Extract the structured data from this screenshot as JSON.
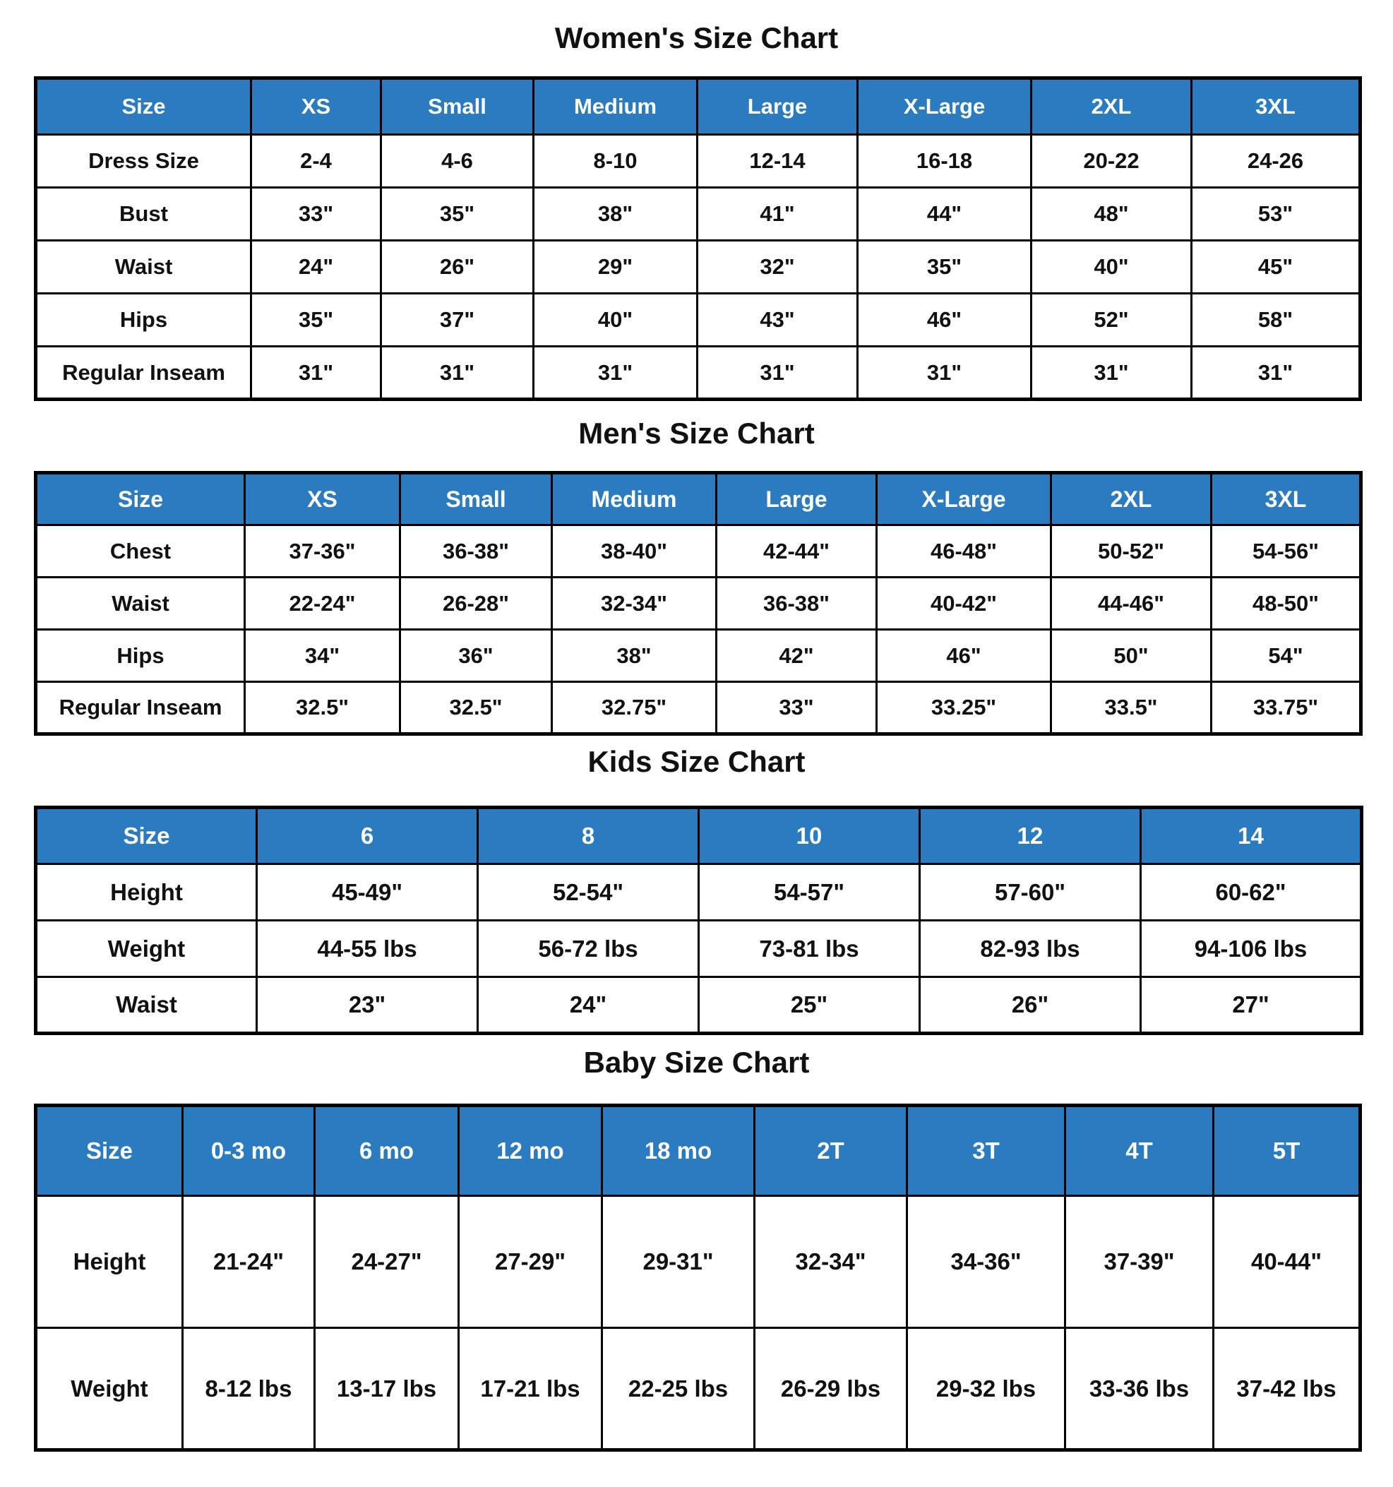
{
  "colors": {
    "header_bg": "#2a7bbf",
    "header_text": "#ffffff",
    "border": "#000000"
  },
  "women": {
    "title": "Women's Size Chart",
    "headers": [
      "Size",
      "XS",
      "Small",
      "Medium",
      "Large",
      "X-Large",
      "2XL",
      "3XL"
    ],
    "rows": [
      [
        "Dress Size",
        "2-4",
        "4-6",
        "8-10",
        "12-14",
        "16-18",
        "20-22",
        "24-26"
      ],
      [
        "Bust",
        "33\"",
        "35\"",
        "38\"",
        "41\"",
        "44\"",
        "48\"",
        "53\""
      ],
      [
        "Waist",
        "24\"",
        "26\"",
        "29\"",
        "32\"",
        "35\"",
        "40\"",
        "45\""
      ],
      [
        "Hips",
        "35\"",
        "37\"",
        "40\"",
        "43\"",
        "46\"",
        "52\"",
        "58\""
      ],
      [
        "Regular Inseam",
        "31\"",
        "31\"",
        "31\"",
        "31\"",
        "31\"",
        "31\"",
        "31\""
      ]
    ]
  },
  "men": {
    "title": "Men's Size Chart",
    "headers": [
      "Size",
      "XS",
      "Small",
      "Medium",
      "Large",
      "X-Large",
      "2XL",
      "3XL"
    ],
    "rows": [
      [
        "Chest",
        "37-36\"",
        "36-38\"",
        "38-40\"",
        "42-44\"",
        "46-48\"",
        "50-52\"",
        "54-56\""
      ],
      [
        "Waist",
        "22-24\"",
        "26-28\"",
        "32-34\"",
        "36-38\"",
        "40-42\"",
        "44-46\"",
        "48-50\""
      ],
      [
        "Hips",
        "34\"",
        "36\"",
        "38\"",
        "42\"",
        "46\"",
        "50\"",
        "54\""
      ],
      [
        "Regular Inseam",
        "32.5\"",
        "32.5\"",
        "32.75\"",
        "33\"",
        "33.25\"",
        "33.5\"",
        "33.75\""
      ]
    ]
  },
  "kids": {
    "title": "Kids Size Chart",
    "headers": [
      "Size",
      "6",
      "8",
      "10",
      "12",
      "14"
    ],
    "rows": [
      [
        "Height",
        "45-49\"",
        "52-54\"",
        "54-57\"",
        "57-60\"",
        "60-62\""
      ],
      [
        "Weight",
        "44-55 lbs",
        "56-72 lbs",
        "73-81 lbs",
        "82-93 lbs",
        "94-106 lbs"
      ],
      [
        "Waist",
        "23\"",
        "24\"",
        "25\"",
        "26\"",
        "27\""
      ]
    ]
  },
  "baby": {
    "title": "Baby Size Chart",
    "headers": [
      "Size",
      "0-3 mo",
      "6 mo",
      "12 mo",
      "18 mo",
      "2T",
      "3T",
      "4T",
      "5T"
    ],
    "rows": [
      [
        "Height",
        "21-24\"",
        "24-27\"",
        "27-29\"",
        "29-31\"",
        "32-34\"",
        "34-36\"",
        "37-39\"",
        "40-44\""
      ],
      [
        "Weight",
        "8-12 lbs",
        "13-17 lbs",
        "17-21 lbs",
        "22-25 lbs",
        "26-29 lbs",
        "29-32 lbs",
        "33-36 lbs",
        "37-42 lbs"
      ]
    ]
  }
}
